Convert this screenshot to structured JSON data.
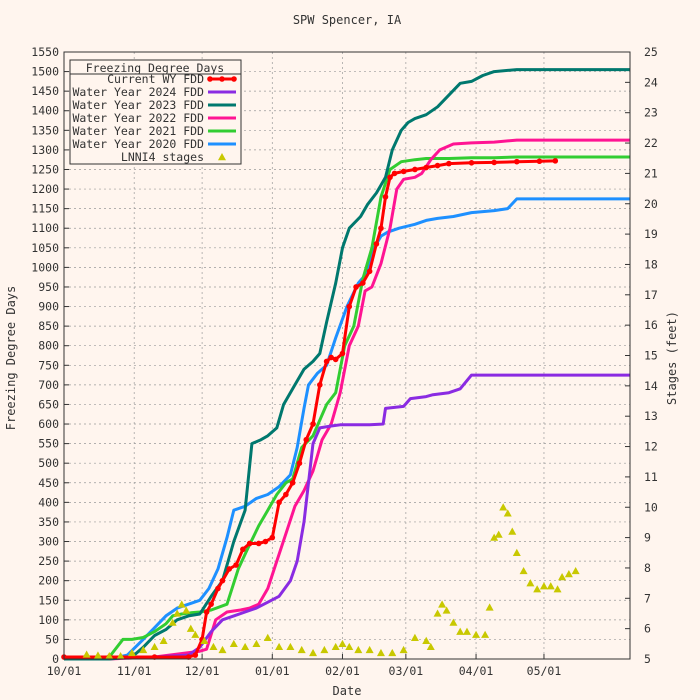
{
  "chart_data": {
    "type": "line",
    "title": "SPW Spencer, IA",
    "xlabel": "Date",
    "ylabel": "Freezing Degree Days",
    "y2label": "Stages (feet)",
    "x_tick_labels": [
      "10/01",
      "11/01",
      "12/01",
      "01/01",
      "02/01",
      "03/01",
      "04/01",
      "05/01"
    ],
    "x_tick_days": [
      0,
      31,
      61,
      92,
      123,
      151,
      182,
      212
    ],
    "xlim": [
      0,
      250
    ],
    "ylim": [
      0,
      1550
    ],
    "y_ticks": [
      0,
      50,
      100,
      150,
      200,
      250,
      300,
      350,
      400,
      450,
      500,
      550,
      600,
      650,
      700,
      750,
      800,
      850,
      900,
      950,
      1000,
      1050,
      1100,
      1150,
      1200,
      1250,
      1300,
      1350,
      1400,
      1450,
      1500,
      1550
    ],
    "y2lim": [
      5,
      25
    ],
    "y2_ticks": [
      5,
      6,
      7,
      8,
      9,
      10,
      11,
      12,
      13,
      14,
      15,
      16,
      17,
      18,
      19,
      20,
      21,
      22,
      23,
      24,
      25
    ],
    "grid": true,
    "legend": {
      "title": "Freezing Degree Days",
      "position": "top-left"
    },
    "series": [
      {
        "name": "Current WY FDD",
        "color": "#ff0000",
        "marker": "filled-circle",
        "points": [
          [
            0,
            5
          ],
          [
            20,
            5
          ],
          [
            40,
            5
          ],
          [
            55,
            5
          ],
          [
            58,
            10
          ],
          [
            61,
            50
          ],
          [
            63,
            120
          ],
          [
            65,
            140
          ],
          [
            68,
            180
          ],
          [
            70,
            200
          ],
          [
            73,
            230
          ],
          [
            76,
            240
          ],
          [
            79,
            280
          ],
          [
            82,
            295
          ],
          [
            86,
            295
          ],
          [
            89,
            300
          ],
          [
            92,
            310
          ],
          [
            95,
            400
          ],
          [
            98,
            420
          ],
          [
            101,
            450
          ],
          [
            104,
            500
          ],
          [
            107,
            560
          ],
          [
            110,
            600
          ],
          [
            113,
            700
          ],
          [
            116,
            760
          ],
          [
            118,
            770
          ],
          [
            120,
            765
          ],
          [
            123,
            780
          ],
          [
            126,
            900
          ],
          [
            129,
            950
          ],
          [
            132,
            960
          ],
          [
            135,
            990
          ],
          [
            138,
            1060
          ],
          [
            140,
            1100
          ],
          [
            142,
            1180
          ],
          [
            144,
            1230
          ],
          [
            146,
            1240
          ],
          [
            150,
            1245
          ],
          [
            155,
            1250
          ],
          [
            160,
            1255
          ],
          [
            165,
            1260
          ],
          [
            170,
            1265
          ],
          [
            180,
            1267
          ],
          [
            190,
            1268
          ],
          [
            200,
            1270
          ],
          [
            210,
            1271
          ],
          [
            217,
            1272
          ]
        ]
      },
      {
        "name": "Water Year 2024 FDD",
        "color": "#8a2be2",
        "points": [
          [
            0,
            5
          ],
          [
            40,
            5
          ],
          [
            55,
            10
          ],
          [
            60,
            30
          ],
          [
            65,
            70
          ],
          [
            70,
            100
          ],
          [
            75,
            110
          ],
          [
            80,
            120
          ],
          [
            85,
            130
          ],
          [
            90,
            145
          ],
          [
            95,
            160
          ],
          [
            100,
            200
          ],
          [
            103,
            250
          ],
          [
            106,
            350
          ],
          [
            108,
            450
          ],
          [
            110,
            550
          ],
          [
            113,
            590
          ],
          [
            118,
            595
          ],
          [
            122,
            598
          ],
          [
            130,
            598
          ],
          [
            135,
            598
          ],
          [
            141,
            600
          ],
          [
            142,
            640
          ],
          [
            150,
            645
          ],
          [
            153,
            665
          ],
          [
            160,
            670
          ],
          [
            163,
            675
          ],
          [
            170,
            680
          ],
          [
            175,
            690
          ],
          [
            180,
            725
          ],
          [
            190,
            725
          ],
          [
            200,
            725
          ],
          [
            220,
            725
          ],
          [
            250,
            725
          ]
        ]
      },
      {
        "name": "Water Year 2023 FDD",
        "color": "#00786e",
        "points": [
          [
            0,
            0
          ],
          [
            20,
            0
          ],
          [
            30,
            5
          ],
          [
            35,
            30
          ],
          [
            40,
            60
          ],
          [
            45,
            75
          ],
          [
            50,
            100
          ],
          [
            55,
            110
          ],
          [
            60,
            115
          ],
          [
            65,
            160
          ],
          [
            70,
            200
          ],
          [
            75,
            300
          ],
          [
            80,
            380
          ],
          [
            83,
            550
          ],
          [
            87,
            560
          ],
          [
            90,
            570
          ],
          [
            94,
            590
          ],
          [
            97,
            650
          ],
          [
            102,
            700
          ],
          [
            106,
            740
          ],
          [
            110,
            760
          ],
          [
            113,
            780
          ],
          [
            116,
            860
          ],
          [
            120,
            960
          ],
          [
            123,
            1050
          ],
          [
            126,
            1100
          ],
          [
            131,
            1130
          ],
          [
            134,
            1160
          ],
          [
            138,
            1190
          ],
          [
            142,
            1230
          ],
          [
            145,
            1300
          ],
          [
            149,
            1350
          ],
          [
            152,
            1370
          ],
          [
            155,
            1380
          ],
          [
            160,
            1390
          ],
          [
            165,
            1410
          ],
          [
            170,
            1440
          ],
          [
            175,
            1470
          ],
          [
            180,
            1475
          ],
          [
            185,
            1490
          ],
          [
            190,
            1500
          ],
          [
            200,
            1505
          ],
          [
            220,
            1505
          ],
          [
            250,
            1505
          ]
        ]
      },
      {
        "name": "Water Year 2022 FDD",
        "color": "#ff1493",
        "points": [
          [
            0,
            0
          ],
          [
            20,
            0
          ],
          [
            40,
            5
          ],
          [
            60,
            20
          ],
          [
            63,
            25
          ],
          [
            67,
            100
          ],
          [
            72,
            120
          ],
          [
            78,
            125
          ],
          [
            82,
            130
          ],
          [
            86,
            140
          ],
          [
            90,
            180
          ],
          [
            94,
            250
          ],
          [
            98,
            320
          ],
          [
            102,
            390
          ],
          [
            106,
            430
          ],
          [
            110,
            480
          ],
          [
            114,
            560
          ],
          [
            118,
            600
          ],
          [
            122,
            680
          ],
          [
            126,
            800
          ],
          [
            130,
            850
          ],
          [
            133,
            940
          ],
          [
            136,
            950
          ],
          [
            140,
            1010
          ],
          [
            144,
            1100
          ],
          [
            147,
            1200
          ],
          [
            150,
            1225
          ],
          [
            155,
            1230
          ],
          [
            158,
            1240
          ],
          [
            162,
            1275
          ],
          [
            166,
            1300
          ],
          [
            172,
            1315
          ],
          [
            180,
            1318
          ],
          [
            190,
            1320
          ],
          [
            200,
            1325
          ],
          [
            220,
            1325
          ],
          [
            250,
            1325
          ]
        ]
      },
      {
        "name": "Water Year 2021 FDD",
        "color": "#32cd32",
        "points": [
          [
            0,
            0
          ],
          [
            20,
            5
          ],
          [
            26,
            50
          ],
          [
            30,
            50
          ],
          [
            35,
            55
          ],
          [
            40,
            70
          ],
          [
            45,
            90
          ],
          [
            48,
            110
          ],
          [
            52,
            115
          ],
          [
            56,
            118
          ],
          [
            60,
            120
          ],
          [
            65,
            125
          ],
          [
            72,
            140
          ],
          [
            77,
            230
          ],
          [
            81,
            280
          ],
          [
            86,
            340
          ],
          [
            90,
            380
          ],
          [
            94,
            420
          ],
          [
            98,
            450
          ],
          [
            101,
            460
          ],
          [
            105,
            540
          ],
          [
            110,
            570
          ],
          [
            116,
            650
          ],
          [
            120,
            680
          ],
          [
            124,
            800
          ],
          [
            128,
            850
          ],
          [
            132,
            970
          ],
          [
            136,
            1050
          ],
          [
            140,
            1180
          ],
          [
            144,
            1250
          ],
          [
            149,
            1270
          ],
          [
            155,
            1275
          ],
          [
            160,
            1278
          ],
          [
            170,
            1278
          ],
          [
            180,
            1280
          ],
          [
            190,
            1280
          ],
          [
            200,
            1282
          ],
          [
            220,
            1282
          ],
          [
            250,
            1282
          ]
        ]
      },
      {
        "name": "Water Year 2020 FDD",
        "color": "#1e90ff",
        "points": [
          [
            0,
            0
          ],
          [
            20,
            0
          ],
          [
            28,
            10
          ],
          [
            35,
            50
          ],
          [
            40,
            80
          ],
          [
            45,
            110
          ],
          [
            50,
            130
          ],
          [
            55,
            140
          ],
          [
            60,
            150
          ],
          [
            64,
            180
          ],
          [
            68,
            230
          ],
          [
            72,
            310
          ],
          [
            75,
            380
          ],
          [
            80,
            390
          ],
          [
            85,
            410
          ],
          [
            90,
            420
          ],
          [
            95,
            440
          ],
          [
            100,
            470
          ],
          [
            103,
            540
          ],
          [
            106,
            640
          ],
          [
            108,
            700
          ],
          [
            112,
            730
          ],
          [
            116,
            750
          ],
          [
            120,
            820
          ],
          [
            125,
            900
          ],
          [
            130,
            960
          ],
          [
            133,
            980
          ],
          [
            137,
            1050
          ],
          [
            140,
            1080
          ],
          [
            143,
            1090
          ],
          [
            148,
            1100
          ],
          [
            155,
            1110
          ],
          [
            160,
            1120
          ],
          [
            165,
            1125
          ],
          [
            172,
            1130
          ],
          [
            180,
            1140
          ],
          [
            190,
            1145
          ],
          [
            196,
            1150
          ],
          [
            200,
            1175
          ],
          [
            220,
            1175
          ],
          [
            250,
            1175
          ]
        ]
      },
      {
        "name": "LNNI4 stages",
        "color": "#c8c800",
        "marker": "triangle",
        "axis": "y2",
        "points": [
          [
            10,
            5.15
          ],
          [
            15,
            5.12
          ],
          [
            20,
            5.1
          ],
          [
            25,
            5.1
          ],
          [
            30,
            5.2
          ],
          [
            35,
            5.3
          ],
          [
            40,
            5.4
          ],
          [
            44,
            5.6
          ],
          [
            48,
            6.2
          ],
          [
            50,
            6.5
          ],
          [
            52,
            6.8
          ],
          [
            54,
            6.6
          ],
          [
            56,
            6.0
          ],
          [
            58,
            5.8
          ],
          [
            62,
            5.6
          ],
          [
            66,
            5.4
          ],
          [
            70,
            5.3
          ],
          [
            75,
            5.5
          ],
          [
            80,
            5.4
          ],
          [
            85,
            5.5
          ],
          [
            90,
            5.7
          ],
          [
            95,
            5.4
          ],
          [
            100,
            5.4
          ],
          [
            105,
            5.3
          ],
          [
            110,
            5.2
          ],
          [
            115,
            5.3
          ],
          [
            120,
            5.4
          ],
          [
            123,
            5.5
          ],
          [
            126,
            5.4
          ],
          [
            130,
            5.3
          ],
          [
            135,
            5.3
          ],
          [
            140,
            5.2
          ],
          [
            145,
            5.2
          ],
          [
            150,
            5.3
          ],
          [
            155,
            5.7
          ],
          [
            160,
            5.6
          ],
          [
            162,
            5.4
          ],
          [
            165,
            6.5
          ],
          [
            167,
            6.8
          ],
          [
            169,
            6.6
          ],
          [
            172,
            6.2
          ],
          [
            175,
            5.9
          ],
          [
            178,
            5.9
          ],
          [
            182,
            5.8
          ],
          [
            186,
            5.8
          ],
          [
            188,
            6.7
          ],
          [
            190,
            9.0
          ],
          [
            192,
            9.1
          ],
          [
            194,
            10.0
          ],
          [
            196,
            9.8
          ],
          [
            198,
            9.2
          ],
          [
            200,
            8.5
          ],
          [
            203,
            7.9
          ],
          [
            206,
            7.5
          ],
          [
            209,
            7.3
          ],
          [
            212,
            7.4
          ],
          [
            215,
            7.4
          ],
          [
            218,
            7.3
          ],
          [
            220,
            7.7
          ],
          [
            223,
            7.8
          ],
          [
            226,
            7.9
          ]
        ]
      }
    ]
  }
}
